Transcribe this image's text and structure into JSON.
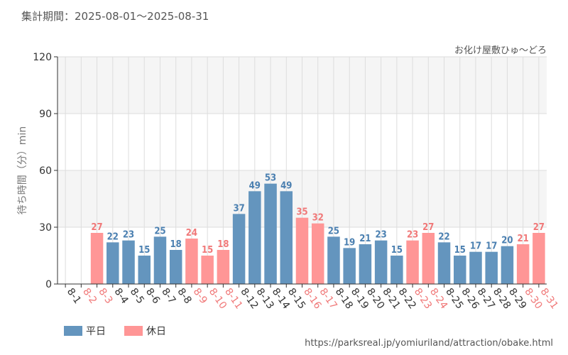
{
  "header": {
    "period_text": "集計期間：2025-08-01～2025-08-31",
    "attraction": "お化け屋敷ひゅ～どろ"
  },
  "footer": {
    "source_url": "https://parksreal.jp/yomiuriland/attraction/obake.html"
  },
  "colors": {
    "weekday": "#6495be",
    "holiday": "#ff9696",
    "weekday_text": "#4a7fb0",
    "holiday_text": "#f07878",
    "band": "#f5f5f5",
    "grid": "#dddddd",
    "axis": "#333333"
  },
  "chart_data": {
    "type": "bar",
    "title": "",
    "xlabel": "",
    "ylabel": "待ち時間（分）min",
    "ylim": [
      0,
      120
    ],
    "yticks": [
      0,
      30,
      60,
      90,
      120
    ],
    "legend": {
      "position": "bottom-left",
      "entries": [
        "平日",
        "休日"
      ]
    },
    "categories": [
      "8-1",
      "8-2",
      "8-3",
      "8-4",
      "8-5",
      "8-6",
      "8-7",
      "8-8",
      "8-9",
      "8-10",
      "8-11",
      "8-12",
      "8-13",
      "8-14",
      "8-15",
      "8-16",
      "8-17",
      "8-18",
      "8-19",
      "8-20",
      "8-21",
      "8-22",
      "8-23",
      "8-24",
      "8-25",
      "8-26",
      "8-27",
      "8-28",
      "8-29",
      "8-30",
      "8-31"
    ],
    "values": [
      null,
      null,
      27,
      22,
      23,
      15,
      25,
      18,
      24,
      15,
      18,
      37,
      49,
      53,
      49,
      35,
      32,
      25,
      19,
      21,
      23,
      15,
      23,
      27,
      22,
      15,
      17,
      17,
      20,
      21,
      27
    ],
    "day_type": [
      "平日",
      "休日",
      "休日",
      "平日",
      "平日",
      "平日",
      "平日",
      "平日",
      "休日",
      "休日",
      "休日",
      "平日",
      "平日",
      "平日",
      "平日",
      "休日",
      "休日",
      "平日",
      "平日",
      "平日",
      "平日",
      "平日",
      "休日",
      "休日",
      "平日",
      "平日",
      "平日",
      "平日",
      "平日",
      "休日",
      "休日"
    ]
  }
}
